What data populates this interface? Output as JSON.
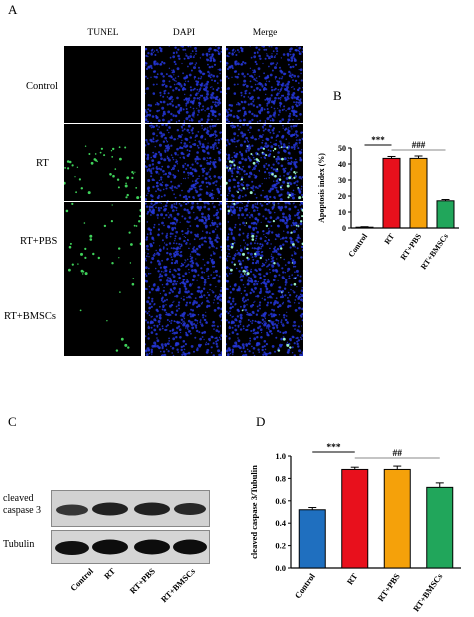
{
  "panels": {
    "a": "A",
    "b": "B",
    "c": "C",
    "d": "D"
  },
  "micro": {
    "columns": [
      "TUNEL",
      "DAPI",
      "Merge"
    ],
    "rows": [
      "Control",
      "RT",
      "RT+PBS",
      "RT+BMSCs"
    ]
  },
  "western": {
    "bands": [
      "cleaved\ncaspase 3",
      "Tubulin"
    ],
    "lanes": [
      "Control",
      "RT",
      "RT+PBS",
      "RT+BMSCs"
    ]
  },
  "chart_data": [
    {
      "type": "bar",
      "title": "",
      "ylabel": "Apoptosis index (%)",
      "xlabel": "",
      "categories": [
        "Control",
        "RT",
        "RT+PBS",
        "RT+BMSCs"
      ],
      "values": [
        0.5,
        43.5,
        43.5,
        17
      ],
      "errors": [
        0.3,
        1.2,
        1.5,
        0.8
      ],
      "colors": [
        "#1f5fbf",
        "#e8101c",
        "#f5a10a",
        "#21a65b"
      ],
      "ylim": [
        0,
        50
      ],
      "yticks": [
        0,
        10,
        20,
        30,
        40,
        50
      ],
      "annotations": [
        {
          "text": "***",
          "from": 0,
          "to": 1
        },
        {
          "text": "###",
          "from": 1,
          "to": 3
        }
      ]
    },
    {
      "type": "bar",
      "title": "",
      "ylabel": "cleaved caspase 3/Tubulin",
      "xlabel": "",
      "categories": [
        "Control",
        "RT",
        "RT+PBS",
        "RT+BMSCs"
      ],
      "values": [
        0.52,
        0.88,
        0.88,
        0.72
      ],
      "errors": [
        0.02,
        0.02,
        0.03,
        0.04
      ],
      "colors": [
        "#1f6fbf",
        "#e8101c",
        "#f5a10a",
        "#21a65b"
      ],
      "ylim": [
        0,
        1.0
      ],
      "yticks": [
        "0.0",
        "0.2",
        "0.4",
        "0.6",
        "0.8",
        "1.0"
      ],
      "annotations": [
        {
          "text": "***",
          "from": 0,
          "to": 1
        },
        {
          "text": "##",
          "from": 1,
          "to": 3
        }
      ]
    }
  ]
}
